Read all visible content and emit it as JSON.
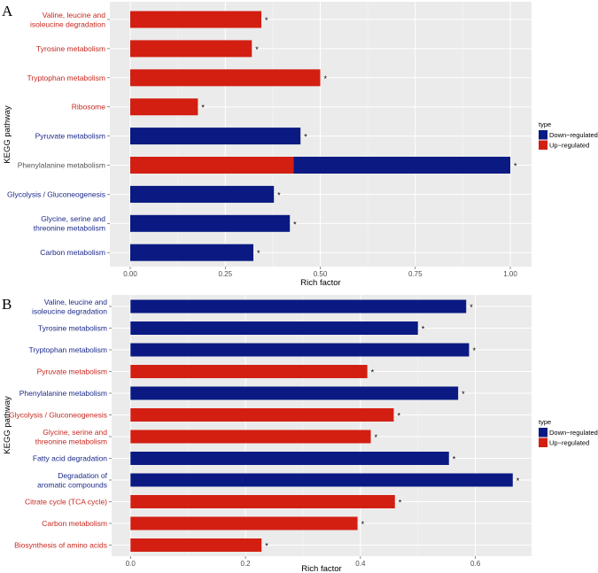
{
  "colors": {
    "down": "#0a1a82",
    "up": "#d21f12",
    "label_down": "#1c2a8a",
    "label_up": "#c8281f",
    "label_mixed": "#555555"
  },
  "chart_data": [
    {
      "panel": "A",
      "type": "bar",
      "orientation": "horizontal",
      "stacked": true,
      "xlabel": "Rich factor",
      "ylabel": "KEGG pathway",
      "xlim": [
        0,
        1
      ],
      "xticks": [
        0,
        0.25,
        0.5,
        0.75,
        1.0
      ],
      "xtick_labels": [
        "0.00",
        "0.25",
        "0.50",
        "0.75",
        "1.00"
      ],
      "legend": {
        "title": "type",
        "position": "right",
        "entries": [
          "Down−regulated",
          "Up−regulated"
        ]
      },
      "grid": true,
      "categories": [
        {
          "label": [
            "Valine, leucine and",
            "isoleucine degradation"
          ],
          "label_type": "up",
          "segments": [
            {
              "type": "up",
              "value": 0.345
            }
          ],
          "annotation": "*"
        },
        {
          "label": [
            "Tyrosine metabolism"
          ],
          "label_type": "up",
          "segments": [
            {
              "type": "up",
              "value": 0.32
            }
          ],
          "annotation": "*"
        },
        {
          "label": [
            "Tryptophan metabolism"
          ],
          "label_type": "up",
          "segments": [
            {
              "type": "up",
              "value": 0.5
            }
          ],
          "annotation": "*"
        },
        {
          "label": [
            "Ribosome"
          ],
          "label_type": "up",
          "segments": [
            {
              "type": "up",
              "value": 0.178
            }
          ],
          "annotation": "*"
        },
        {
          "label": [
            "Pyruvate metabolism"
          ],
          "label_type": "down",
          "segments": [
            {
              "type": "down",
              "value": 0.448
            }
          ],
          "annotation": "*"
        },
        {
          "label": [
            "Phenylalanine metabolism"
          ],
          "label_type": "mixed",
          "segments": [
            {
              "type": "up",
              "value": 0.43
            },
            {
              "type": "down",
              "value": 0.57
            }
          ],
          "annotation": "*"
        },
        {
          "label": [
            "Glycolysis / Gluconeogenesis"
          ],
          "label_type": "down",
          "segments": [
            {
              "type": "down",
              "value": 0.378
            }
          ],
          "annotation": "*"
        },
        {
          "label": [
            "Glycine, serine and",
            "threonine metabolism"
          ],
          "label_type": "down",
          "segments": [
            {
              "type": "down",
              "value": 0.42
            }
          ],
          "annotation": "*"
        },
        {
          "label": [
            "Carbon metabolism"
          ],
          "label_type": "down",
          "segments": [
            {
              "type": "down",
              "value": 0.324
            }
          ],
          "annotation": "*"
        }
      ]
    },
    {
      "panel": "B",
      "type": "bar",
      "orientation": "horizontal",
      "stacked": false,
      "xlabel": "Rich factor",
      "ylabel": "KEGG pathway",
      "xlim": [
        -0.04,
        0.7
      ],
      "xticks": [
        0,
        0.2,
        0.4,
        0.6
      ],
      "xtick_labels": [
        "0.0",
        "0.2",
        "0.4",
        "0.6"
      ],
      "legend": {
        "title": "type",
        "position": "right",
        "entries": [
          "Down−regulated",
          "Up−regulated"
        ]
      },
      "grid": true,
      "categories": [
        {
          "label": [
            "Valine, leucine and",
            "isoleucine degradation"
          ],
          "label_type": "down",
          "segments": [
            {
              "type": "down",
              "value": 0.584
            }
          ],
          "annotation": "*"
        },
        {
          "label": [
            "Tyrosine metabolism"
          ],
          "label_type": "down",
          "segments": [
            {
              "type": "down",
              "value": 0.5
            }
          ],
          "annotation": "*"
        },
        {
          "label": [
            "Tryptophan metabolism"
          ],
          "label_type": "down",
          "segments": [
            {
              "type": "down",
              "value": 0.589
            }
          ],
          "annotation": "*"
        },
        {
          "label": [
            "Pyruvate metabolism"
          ],
          "label_type": "up",
          "segments": [
            {
              "type": "up",
              "value": 0.412
            }
          ],
          "annotation": "*"
        },
        {
          "label": [
            "Phenylalanine metabolism"
          ],
          "label_type": "down",
          "segments": [
            {
              "type": "down",
              "value": 0.57
            }
          ],
          "annotation": "*"
        },
        {
          "label": [
            "Glycolysis / Gluconeogenesis"
          ],
          "label_type": "up",
          "segments": [
            {
              "type": "up",
              "value": 0.458
            }
          ],
          "annotation": "*"
        },
        {
          "label": [
            "Glycine, serine and",
            "threonine metabolism"
          ],
          "label_type": "up",
          "segments": [
            {
              "type": "up",
              "value": 0.418
            }
          ],
          "annotation": "*"
        },
        {
          "label": [
            "Fatty acid degradation"
          ],
          "label_type": "down",
          "segments": [
            {
              "type": "down",
              "value": 0.554
            }
          ],
          "annotation": "*"
        },
        {
          "label": [
            "Degradation of",
            "aromatic compounds"
          ],
          "label_type": "down",
          "segments": [
            {
              "type": "down",
              "value": 0.665
            }
          ],
          "annotation": "*"
        },
        {
          "label": [
            "Citrate cycle (TCA cycle)"
          ],
          "label_type": "up",
          "segments": [
            {
              "type": "up",
              "value": 0.46
            }
          ],
          "annotation": "*"
        },
        {
          "label": [
            "Carbon metabolism"
          ],
          "label_type": "up",
          "segments": [
            {
              "type": "up",
              "value": 0.395
            }
          ],
          "annotation": "*"
        },
        {
          "label": [
            "Biosynthesis of amino acids"
          ],
          "label_type": "up",
          "segments": [
            {
              "type": "up",
              "value": 0.228
            }
          ],
          "annotation": "*"
        }
      ]
    }
  ]
}
